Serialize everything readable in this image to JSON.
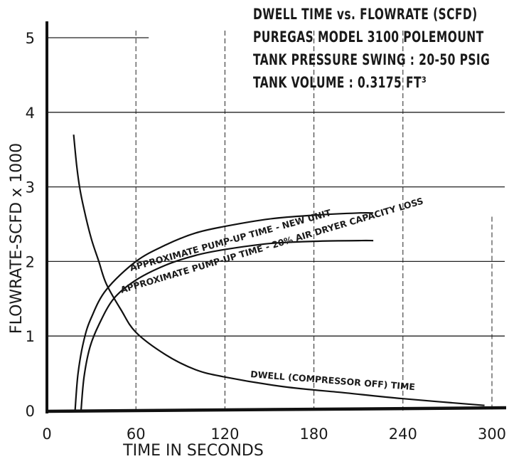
{
  "chart_data": {
    "type": "line",
    "title_lines": [
      "DWELL TIME vs. FLOWRATE (SCFD)",
      "PUREGAS MODEL 3100 POLEMOUNT",
      "TANK PRESSURE SWING : 20-50 PSIG",
      "TANK VOLUME : 0.3175 FT³"
    ],
    "xlabel": "TIME IN SECONDS",
    "ylabel": "FLOWRATE-SCFD x 1000",
    "xlim": [
      0,
      300
    ],
    "ylim": [
      0,
      5
    ],
    "x_ticks": [
      "0",
      "60",
      "120",
      "180",
      "240",
      "300"
    ],
    "y_ticks": [
      "0",
      "1",
      "2",
      "3",
      "4",
      "5"
    ],
    "grid": true,
    "series": [
      {
        "name": "DWELL (COMPRESSOR OFF) TIME",
        "points": [
          [
            18,
            3.7
          ],
          [
            20,
            3.3
          ],
          [
            22,
            3.0
          ],
          [
            25,
            2.7
          ],
          [
            30,
            2.3
          ],
          [
            35,
            2.0
          ],
          [
            40,
            1.7
          ],
          [
            50,
            1.35
          ],
          [
            60,
            1.05
          ],
          [
            80,
            0.75
          ],
          [
            100,
            0.55
          ],
          [
            120,
            0.45
          ],
          [
            160,
            0.32
          ],
          [
            200,
            0.24
          ],
          [
            240,
            0.16
          ],
          [
            295,
            0.07
          ]
        ]
      },
      {
        "name": "APPROXIMATE PUMP-UP TIME - NEW UNIT",
        "points": [
          [
            19,
            0
          ],
          [
            21,
            0.5
          ],
          [
            25,
            0.95
          ],
          [
            30,
            1.25
          ],
          [
            40,
            1.62
          ],
          [
            60,
            2.0
          ],
          [
            80,
            2.22
          ],
          [
            100,
            2.38
          ],
          [
            120,
            2.47
          ],
          [
            150,
            2.57
          ],
          [
            180,
            2.62
          ],
          [
            210,
            2.65
          ],
          [
            220,
            2.65
          ]
        ]
      },
      {
        "name": "APPROXIMATE PUMP-UP TIME - 20% AIR DRYER CAPACITY LOSS",
        "points": [
          [
            23,
            0
          ],
          [
            25,
            0.45
          ],
          [
            29,
            0.85
          ],
          [
            35,
            1.15
          ],
          [
            45,
            1.5
          ],
          [
            60,
            1.75
          ],
          [
            80,
            1.95
          ],
          [
            100,
            2.08
          ],
          [
            120,
            2.16
          ],
          [
            150,
            2.24
          ],
          [
            180,
            2.27
          ],
          [
            210,
            2.28
          ],
          [
            220,
            2.28
          ]
        ]
      }
    ]
  }
}
